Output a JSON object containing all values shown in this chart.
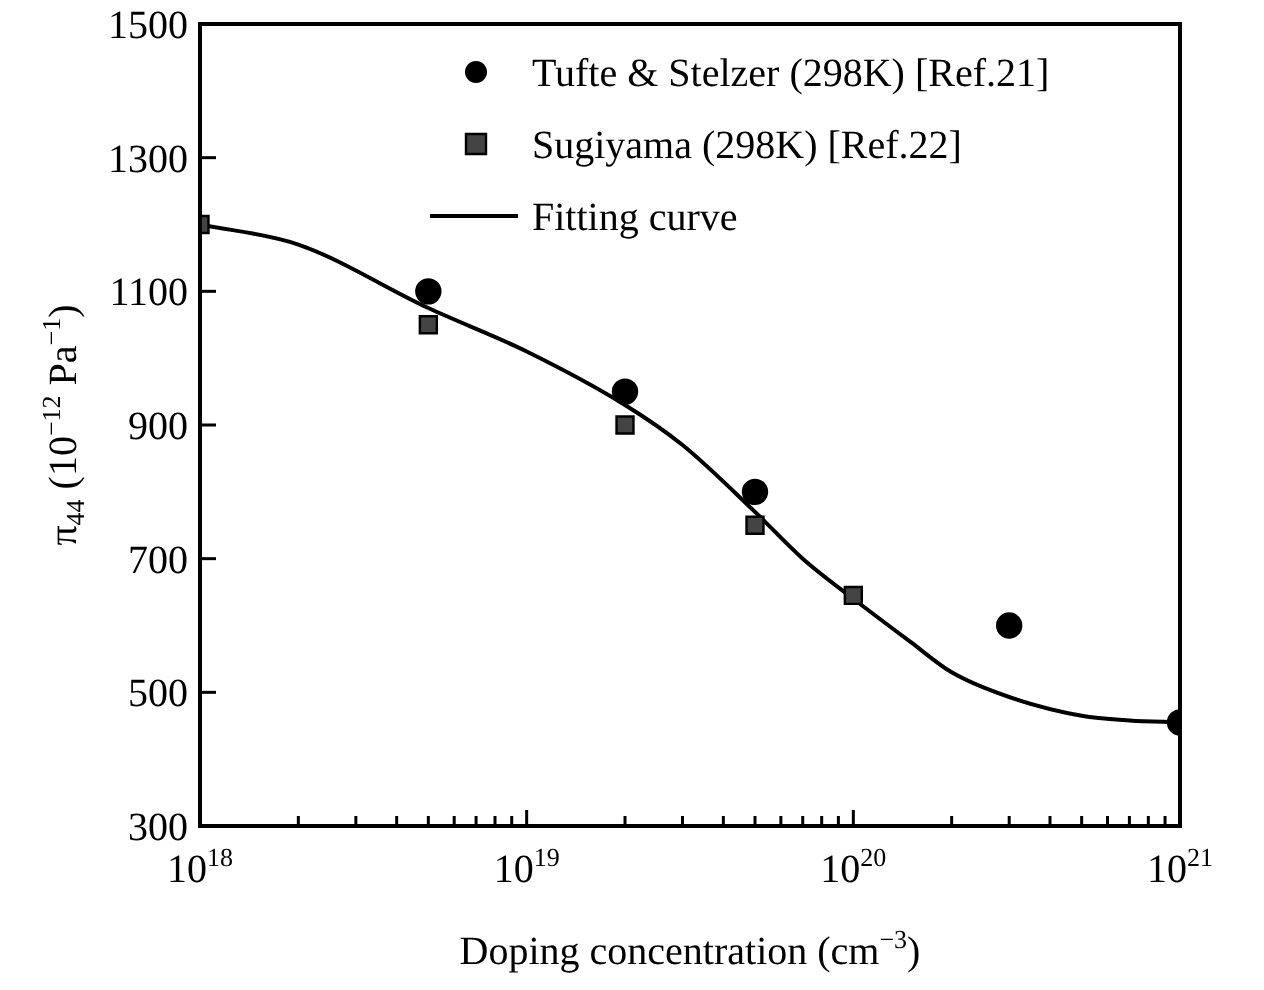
{
  "chart_data": {
    "type": "scatter",
    "xlabel": "Doping concentration (cm$^{−3}$)",
    "ylabel": "π$_{44}$ (10$^{−12}$ Pa$^{−1}$)",
    "log": "x",
    "xlim": [
      1e+18,
      1e+21
    ],
    "xticks": [
      {
        "value": 1e+18,
        "label": "10$^{18}$"
      },
      {
        "value": 2e+18,
        "label": null
      },
      {
        "value": 3e+18,
        "label": null
      },
      {
        "value": 4e+18,
        "label": null
      },
      {
        "value": 5e+18,
        "label": null
      },
      {
        "value": 6e+18,
        "label": null
      },
      {
        "value": 7e+18,
        "label": null
      },
      {
        "value": 8e+18,
        "label": null
      },
      {
        "value": 9e+18,
        "label": null
      },
      {
        "value": 1e+19,
        "label": "10$^{19}$"
      },
      {
        "value": 2e+19,
        "label": null
      },
      {
        "value": 3e+19,
        "label": null
      },
      {
        "value": 4e+19,
        "label": null
      },
      {
        "value": 5e+19,
        "label": null
      },
      {
        "value": 6e+19,
        "label": null
      },
      {
        "value": 7e+19,
        "label": null
      },
      {
        "value": 8e+19,
        "label": null
      },
      {
        "value": 9e+19,
        "label": null
      },
      {
        "value": 1e+20,
        "label": "10$^{20}$"
      },
      {
        "value": 2e+20,
        "label": null
      },
      {
        "value": 3e+20,
        "label": null
      },
      {
        "value": 4e+20,
        "label": null
      },
      {
        "value": 5e+20,
        "label": null
      },
      {
        "value": 6e+20,
        "label": null
      },
      {
        "value": 7e+20,
        "label": null
      },
      {
        "value": 8e+20,
        "label": null
      },
      {
        "value": 9e+20,
        "label": null
      },
      {
        "value": 1e+21,
        "label": "10$^{21}$"
      }
    ],
    "ylim": [
      300,
      1500
    ],
    "yticks": [
      300,
      500,
      700,
      900,
      1100,
      1300,
      1500
    ],
    "grid": false,
    "legend": "top right",
    "series": [
      {
        "name": "Tufte & Stelzer (298K) [Ref.21]",
        "type": "scatter",
        "marker": "circle",
        "color": "#000000",
        "x": [
          5e+18,
          2e+19,
          5e+19,
          3e+20,
          1e+21
        ],
        "values": [
          1100,
          950,
          800,
          600,
          455
        ]
      },
      {
        "name": "Sugiyama (298K) [Ref.22]",
        "type": "scatter",
        "marker": "square",
        "color": "#444444",
        "x": [
          1e+18,
          5e+18,
          2e+19,
          5e+19,
          1e+20
        ],
        "values": [
          1200,
          1050,
          900,
          750,
          645
        ]
      },
      {
        "name": "Fitting curve",
        "type": "line",
        "marker": "none",
        "line_style": "solid",
        "color": "#000000",
        "x": [
          1e+18,
          2e+18,
          5e+18,
          1e+19,
          2e+19,
          3e+19,
          5e+19,
          7e+19,
          1e+20,
          1.5e+20,
          2e+20,
          3e+20,
          5e+20,
          7e+20,
          1e+21
        ],
        "values": [
          1200,
          1170,
          1075,
          1010,
          930,
          870,
          770,
          700,
          640,
          575,
          530,
          493,
          465,
          458,
          455
        ]
      }
    ]
  }
}
